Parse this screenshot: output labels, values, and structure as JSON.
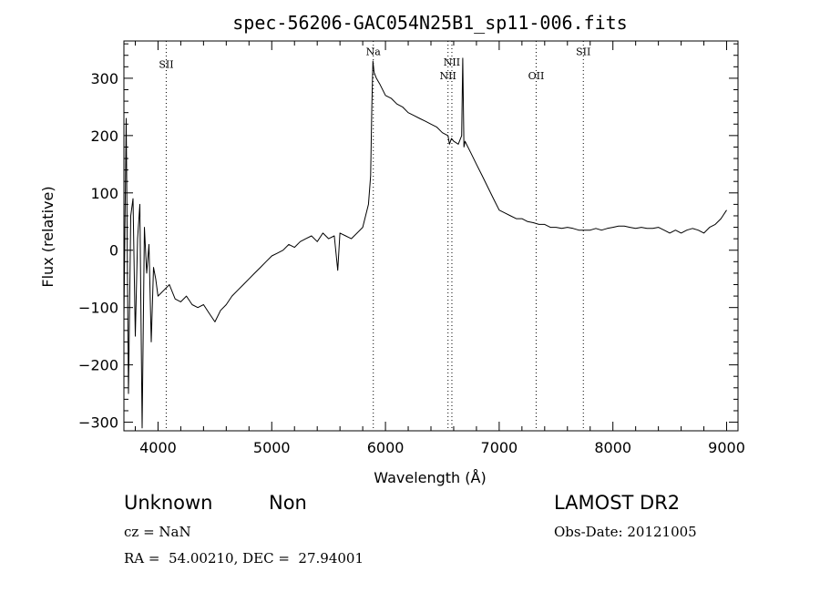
{
  "chart_data": {
    "type": "line",
    "title": "spec-56206-GAC054N25B1_sp11-006.fits",
    "xlabel": "Wavelength (Å)",
    "ylabel": "Flux (relative)",
    "xlim": [
      3700,
      9100
    ],
    "ylim": [
      -315,
      365
    ],
    "xticks": [
      4000,
      5000,
      6000,
      7000,
      8000,
      9000
    ],
    "yticks": [
      -300,
      -200,
      -100,
      0,
      100,
      200,
      300
    ],
    "grid": false,
    "series": [
      {
        "x": [
          3700,
          3720,
          3740,
          3760,
          3780,
          3800,
          3820,
          3840,
          3860,
          3880,
          3900,
          3920,
          3940,
          3960,
          3980,
          4000,
          4050,
          4100,
          4150,
          4200,
          4250,
          4300,
          4350,
          4400,
          4450,
          4500,
          4550,
          4600,
          4650,
          4700,
          4750,
          4800,
          4850,
          4900,
          4950,
          5000,
          5050,
          5100,
          5150,
          5200,
          5250,
          5300,
          5350,
          5400,
          5450,
          5500,
          5550,
          5580,
          5600,
          5650,
          5700,
          5750,
          5800,
          5850,
          5870,
          5880,
          5890,
          5900,
          5920,
          5950,
          6000,
          6050,
          6100,
          6150,
          6200,
          6250,
          6300,
          6350,
          6400,
          6450,
          6500,
          6550,
          6563,
          6580,
          6600,
          6640,
          6670,
          6680,
          6690,
          6700,
          6750,
          6800,
          6850,
          6900,
          6950,
          7000,
          7050,
          7100,
          7150,
          7200,
          7250,
          7300,
          7350,
          7400,
          7450,
          7500,
          7550,
          7600,
          7650,
          7700,
          7750,
          7800,
          7850,
          7900,
          7950,
          8000,
          8050,
          8100,
          8150,
          8200,
          8250,
          8300,
          8350,
          8400,
          8450,
          8500,
          8550,
          8600,
          8650,
          8700,
          8750,
          8800,
          8850,
          8900,
          8950,
          9000
        ],
        "y": [
          -120,
          230,
          -250,
          60,
          90,
          -150,
          20,
          80,
          -310,
          40,
          -40,
          10,
          -160,
          -30,
          -50,
          -80,
          -70,
          -60,
          -85,
          -90,
          -80,
          -95,
          -100,
          -95,
          -110,
          -125,
          -105,
          -95,
          -80,
          -70,
          -60,
          -50,
          -40,
          -30,
          -20,
          -10,
          -5,
          0,
          10,
          5,
          15,
          20,
          25,
          15,
          30,
          20,
          25,
          -35,
          30,
          25,
          20,
          30,
          40,
          80,
          130,
          250,
          330,
          310,
          300,
          290,
          270,
          265,
          255,
          250,
          240,
          235,
          230,
          225,
          220,
          215,
          205,
          200,
          185,
          195,
          190,
          185,
          200,
          335,
          180,
          190,
          170,
          150,
          130,
          110,
          90,
          70,
          65,
          60,
          55,
          55,
          50,
          48,
          45,
          45,
          40,
          40,
          38,
          40,
          38,
          35,
          35,
          35,
          38,
          35,
          38,
          40,
          42,
          42,
          40,
          38,
          40,
          38,
          38,
          40,
          35,
          30,
          35,
          30,
          35,
          38,
          35,
          30,
          40,
          45,
          55,
          70
        ]
      }
    ],
    "vlines": [
      {
        "x": 4072,
        "label": "SII",
        "label_y": 318
      },
      {
        "x": 5893,
        "label": "Na",
        "label_y": 340
      },
      {
        "x": 6550,
        "label": "NII",
        "label_y": 298
      },
      {
        "x": 6584,
        "label": "NII",
        "label_y": 322
      },
      {
        "x": 7325,
        "label": "OII",
        "label_y": 298
      },
      {
        "x": 7740,
        "label": "SII",
        "label_y": 340
      }
    ]
  },
  "info": {
    "object_class": "Unknown",
    "subclass": "Non",
    "survey": "LAMOST DR2",
    "redshift": "cz = NaN",
    "obs_date": "Obs-Date: 20121005",
    "coords": "RA =  54.00210, DEC =  27.94001"
  }
}
